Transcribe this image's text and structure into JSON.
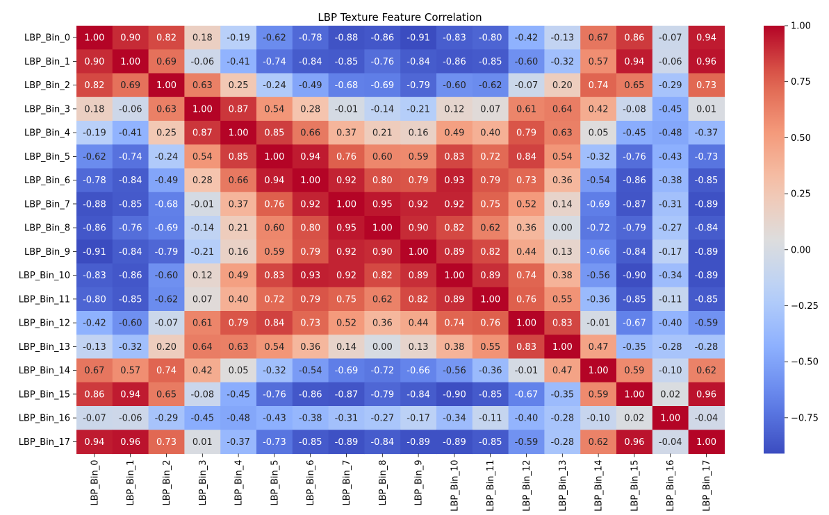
{
  "chart_data": {
    "type": "heatmap",
    "title": "LBP Texture Feature Correlation",
    "xlabel": "",
    "ylabel": "",
    "x_labels": [
      "LBP_Bin_0",
      "LBP_Bin_1",
      "LBP_Bin_2",
      "LBP_Bin_3",
      "LBP_Bin_4",
      "LBP_Bin_5",
      "LBP_Bin_6",
      "LBP_Bin_7",
      "LBP_Bin_8",
      "LBP_Bin_9",
      "LBP_Bin_10",
      "LBP_Bin_11",
      "LBP_Bin_12",
      "LBP_Bin_13",
      "LBP_Bin_14",
      "LBP_Bin_15",
      "LBP_Bin_16",
      "LBP_Bin_17"
    ],
    "y_labels": [
      "LBP_Bin_0",
      "LBP_Bin_1",
      "LBP_Bin_2",
      "LBP_Bin_3",
      "LBP_Bin_4",
      "LBP_Bin_5",
      "LBP_Bin_6",
      "LBP_Bin_7",
      "LBP_Bin_8",
      "LBP_Bin_9",
      "LBP_Bin_10",
      "LBP_Bin_11",
      "LBP_Bin_12",
      "LBP_Bin_13",
      "LBP_Bin_14",
      "LBP_Bin_15",
      "LBP_Bin_16",
      "LBP_Bin_17"
    ],
    "values": [
      [
        1.0,
        0.9,
        0.82,
        0.18,
        -0.19,
        -0.62,
        -0.78,
        -0.88,
        -0.86,
        -0.91,
        -0.83,
        -0.8,
        -0.42,
        -0.13,
        0.67,
        0.86,
        -0.07,
        0.94
      ],
      [
        0.9,
        1.0,
        0.69,
        -0.06,
        -0.41,
        -0.74,
        -0.84,
        -0.85,
        -0.76,
        -0.84,
        -0.86,
        -0.85,
        -0.6,
        -0.32,
        0.57,
        0.94,
        -0.06,
        0.96
      ],
      [
        0.82,
        0.69,
        1.0,
        0.63,
        0.25,
        -0.24,
        -0.49,
        -0.68,
        -0.69,
        -0.79,
        -0.6,
        -0.62,
        -0.07,
        0.2,
        0.74,
        0.65,
        -0.29,
        0.73
      ],
      [
        0.18,
        -0.06,
        0.63,
        1.0,
        0.87,
        0.54,
        0.28,
        -0.01,
        -0.14,
        -0.21,
        0.12,
        0.07,
        0.61,
        0.64,
        0.42,
        -0.08,
        -0.45,
        0.01
      ],
      [
        -0.19,
        -0.41,
        0.25,
        0.87,
        1.0,
        0.85,
        0.66,
        0.37,
        0.21,
        0.16,
        0.49,
        0.4,
        0.79,
        0.63,
        0.05,
        -0.45,
        -0.48,
        -0.37
      ],
      [
        -0.62,
        -0.74,
        -0.24,
        0.54,
        0.85,
        1.0,
        0.94,
        0.76,
        0.6,
        0.59,
        0.83,
        0.72,
        0.84,
        0.54,
        -0.32,
        -0.76,
        -0.43,
        -0.73
      ],
      [
        -0.78,
        -0.84,
        -0.49,
        0.28,
        0.66,
        0.94,
        1.0,
        0.92,
        0.8,
        0.79,
        0.93,
        0.79,
        0.73,
        0.36,
        -0.54,
        -0.86,
        -0.38,
        -0.85
      ],
      [
        -0.88,
        -0.85,
        -0.68,
        -0.01,
        0.37,
        0.76,
        0.92,
        1.0,
        0.95,
        0.92,
        0.92,
        0.75,
        0.52,
        0.14,
        -0.69,
        -0.87,
        -0.31,
        -0.89
      ],
      [
        -0.86,
        -0.76,
        -0.69,
        -0.14,
        0.21,
        0.6,
        0.8,
        0.95,
        1.0,
        0.9,
        0.82,
        0.62,
        0.36,
        0.0,
        -0.72,
        -0.79,
        -0.27,
        -0.84
      ],
      [
        -0.91,
        -0.84,
        -0.79,
        -0.21,
        0.16,
        0.59,
        0.79,
        0.92,
        0.9,
        1.0,
        0.89,
        0.82,
        0.44,
        0.13,
        -0.66,
        -0.84,
        -0.17,
        -0.89
      ],
      [
        -0.83,
        -0.86,
        -0.6,
        0.12,
        0.49,
        0.83,
        0.93,
        0.92,
        0.82,
        0.89,
        1.0,
        0.89,
        0.74,
        0.38,
        -0.56,
        -0.9,
        -0.34,
        -0.89
      ],
      [
        -0.8,
        -0.85,
        -0.62,
        0.07,
        0.4,
        0.72,
        0.79,
        0.75,
        0.62,
        0.82,
        0.89,
        1.0,
        0.76,
        0.55,
        -0.36,
        -0.85,
        -0.11,
        -0.85
      ],
      [
        -0.42,
        -0.6,
        -0.07,
        0.61,
        0.79,
        0.84,
        0.73,
        0.52,
        0.36,
        0.44,
        0.74,
        0.76,
        1.0,
        0.83,
        -0.01,
        -0.67,
        -0.4,
        -0.59
      ],
      [
        -0.13,
        -0.32,
        0.2,
        0.64,
        0.63,
        0.54,
        0.36,
        0.14,
        0.0,
        0.13,
        0.38,
        0.55,
        0.83,
        1.0,
        0.47,
        -0.35,
        -0.28,
        -0.28
      ],
      [
        0.67,
        0.57,
        0.74,
        0.42,
        0.05,
        -0.32,
        -0.54,
        -0.69,
        -0.72,
        -0.66,
        -0.56,
        -0.36,
        -0.01,
        0.47,
        1.0,
        0.59,
        -0.1,
        0.62
      ],
      [
        0.86,
        0.94,
        0.65,
        -0.08,
        -0.45,
        -0.76,
        -0.86,
        -0.87,
        -0.79,
        -0.84,
        -0.9,
        -0.85,
        -0.67,
        -0.35,
        0.59,
        1.0,
        0.02,
        0.96
      ],
      [
        -0.07,
        -0.06,
        -0.29,
        -0.45,
        -0.48,
        -0.43,
        -0.38,
        -0.31,
        -0.27,
        -0.17,
        -0.34,
        -0.11,
        -0.4,
        -0.28,
        -0.1,
        0.02,
        1.0,
        -0.04
      ],
      [
        0.94,
        0.96,
        0.73,
        0.01,
        -0.37,
        -0.73,
        -0.85,
        -0.89,
        -0.84,
        -0.89,
        -0.89,
        -0.85,
        -0.59,
        -0.28,
        0.62,
        0.96,
        -0.04,
        1.0
      ]
    ],
    "vmin": -0.91,
    "vmax": 1.0,
    "colormap": "coolwarm",
    "colorbar_ticks": [
      1.0,
      0.75,
      0.5,
      0.25,
      0.0,
      -0.25,
      -0.5,
      -0.75
    ],
    "colorbar_tick_labels": [
      "1.00",
      "0.75",
      "0.50",
      "0.25",
      "0.00",
      "−0.25",
      "−0.50",
      "−0.75"
    ],
    "annotations": true,
    "annotation_format": "0.00",
    "legend": "colorbar-right",
    "grid": false
  }
}
